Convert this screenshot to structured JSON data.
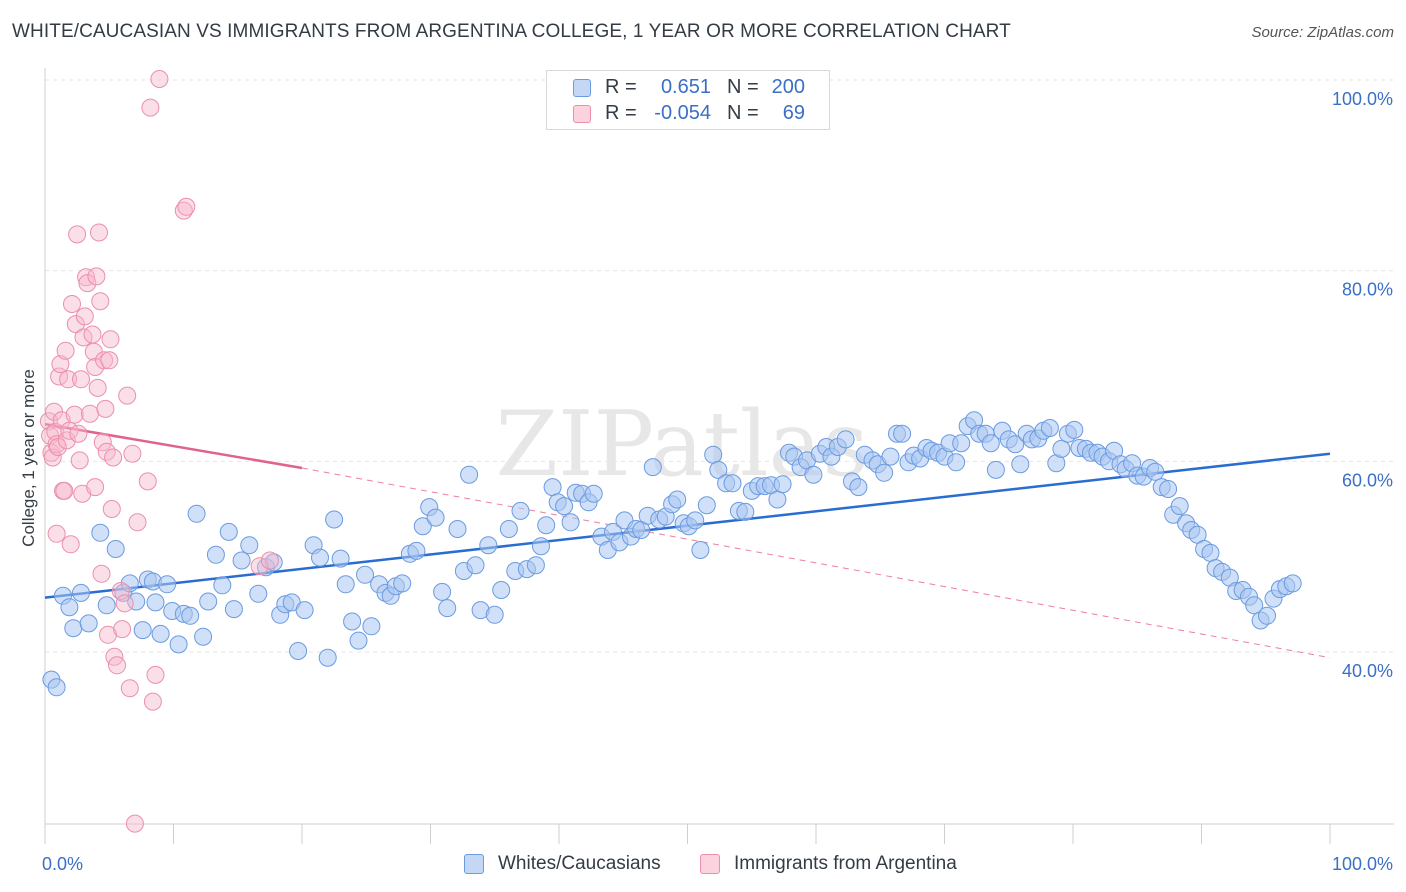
{
  "header": {
    "title": "WHITE/CAUCASIAN VS IMMIGRANTS FROM ARGENTINA COLLEGE, 1 YEAR OR MORE CORRELATION CHART",
    "source": "Source: ZipAtlas.com"
  },
  "watermark": "ZIPatlas",
  "legend_top": {
    "rows": [
      {
        "r_label": "R =",
        "r_value": "0.651",
        "n_label": "N =",
        "n_value": "200",
        "color": "#a9c6f2"
      },
      {
        "r_label": "R =",
        "r_value": "-0.054",
        "n_label": "N =",
        "n_value": "69",
        "color": "#f7b8cb"
      }
    ]
  },
  "legend_bottom": {
    "items": [
      {
        "label": "Whites/Caucasians",
        "color": "#a9c6f2"
      },
      {
        "label": "Immigrants from Argentina",
        "color": "#f7b8cb"
      }
    ]
  },
  "colors": {
    "blue_fill": "#a9c6f2",
    "blue_stroke": "#6b9be0",
    "blue_line": "#2a6dd0",
    "pink_fill": "#f7b8cb",
    "pink_stroke": "#ec8fab",
    "pink_line": "#e0638c",
    "grid": "#e6e6e6",
    "tick_text": "#3b6fc6"
  },
  "chart_data": {
    "type": "scatter",
    "title": "WHITE/CAUCASIAN VS IMMIGRANTS FROM ARGENTINA COLLEGE, 1 YEAR OR MORE CORRELATION CHART",
    "xlabel": "",
    "ylabel": "College, 1 year or more",
    "xlim": [
      0,
      100
    ],
    "ylim": [
      20,
      102
    ],
    "x_tick_labels": [
      "0.0%",
      "100.0%"
    ],
    "y_ticks": [
      40,
      60,
      80,
      100
    ],
    "y_tick_labels": [
      "40.0%",
      "60.0%",
      "80.0%",
      "100.0%"
    ],
    "grid": true,
    "legend_position": "top-center",
    "series": [
      {
        "name": "Whites/Caucasians",
        "color": "#a9c6f2",
        "trend": {
          "x": [
            0,
            100
          ],
          "y": [
            45.7,
            60.8
          ],
          "style": "solid"
        },
        "points": [
          [
            0.5,
            37.1
          ],
          [
            0.9,
            36.3
          ],
          [
            1.4,
            45.9
          ],
          [
            1.9,
            44.7
          ],
          [
            2.2,
            42.5
          ],
          [
            2.8,
            46.2
          ],
          [
            3.4,
            43.0
          ],
          [
            4.3,
            52.5
          ],
          [
            4.8,
            44.9
          ],
          [
            5.5,
            50.8
          ],
          [
            6.1,
            46.2
          ],
          [
            6.6,
            47.2
          ],
          [
            7.1,
            45.3
          ],
          [
            7.6,
            42.3
          ],
          [
            8.0,
            47.6
          ],
          [
            8.4,
            47.4
          ],
          [
            8.6,
            45.2
          ],
          [
            9.0,
            41.9
          ],
          [
            9.5,
            47.1
          ],
          [
            9.9,
            44.3
          ],
          [
            10.4,
            40.8
          ],
          [
            10.8,
            44.0
          ],
          [
            11.3,
            43.8
          ],
          [
            11.8,
            54.5
          ],
          [
            12.3,
            41.6
          ],
          [
            12.7,
            45.3
          ],
          [
            13.3,
            50.2
          ],
          [
            13.8,
            47.0
          ],
          [
            14.3,
            52.6
          ],
          [
            14.7,
            44.5
          ],
          [
            15.3,
            49.6
          ],
          [
            15.9,
            51.2
          ],
          [
            16.6,
            46.1
          ],
          [
            17.2,
            48.9
          ],
          [
            17.8,
            49.4
          ],
          [
            18.3,
            43.9
          ],
          [
            18.7,
            45.0
          ],
          [
            19.2,
            45.2
          ],
          [
            19.7,
            40.1
          ],
          [
            20.2,
            44.4
          ],
          [
            20.9,
            51.2
          ],
          [
            21.4,
            49.9
          ],
          [
            22.0,
            39.4
          ],
          [
            22.5,
            53.9
          ],
          [
            23.0,
            49.8
          ],
          [
            23.4,
            47.1
          ],
          [
            23.9,
            43.2
          ],
          [
            24.4,
            41.2
          ],
          [
            24.9,
            48.1
          ],
          [
            25.4,
            42.7
          ],
          [
            26.0,
            47.1
          ],
          [
            26.5,
            46.2
          ],
          [
            26.9,
            45.9
          ],
          [
            27.3,
            46.9
          ],
          [
            27.8,
            47.2
          ],
          [
            28.4,
            50.3
          ],
          [
            28.9,
            50.6
          ],
          [
            29.4,
            53.2
          ],
          [
            29.9,
            55.2
          ],
          [
            30.4,
            54.1
          ],
          [
            30.9,
            46.3
          ],
          [
            31.3,
            44.6
          ],
          [
            32.1,
            52.9
          ],
          [
            32.6,
            48.5
          ],
          [
            33.0,
            58.6
          ],
          [
            33.5,
            49.1
          ],
          [
            33.9,
            44.4
          ],
          [
            34.5,
            51.2
          ],
          [
            35.0,
            43.9
          ],
          [
            35.5,
            46.5
          ],
          [
            36.1,
            52.9
          ],
          [
            36.6,
            48.5
          ],
          [
            37.0,
            54.8
          ],
          [
            37.5,
            48.7
          ],
          [
            38.2,
            49.1
          ],
          [
            38.6,
            51.1
          ],
          [
            39.0,
            53.3
          ],
          [
            39.5,
            57.3
          ],
          [
            39.9,
            55.7
          ],
          [
            40.4,
            55.3
          ],
          [
            40.9,
            53.6
          ],
          [
            41.3,
            56.7
          ],
          [
            41.8,
            56.6
          ],
          [
            42.3,
            55.7
          ],
          [
            42.7,
            56.6
          ],
          [
            43.3,
            52.1
          ],
          [
            43.8,
            50.7
          ],
          [
            44.2,
            52.6
          ],
          [
            44.7,
            51.5
          ],
          [
            45.1,
            53.8
          ],
          [
            45.6,
            52.1
          ],
          [
            46.0,
            52.9
          ],
          [
            46.4,
            52.8
          ],
          [
            46.9,
            54.3
          ],
          [
            47.3,
            59.4
          ],
          [
            47.8,
            53.9
          ],
          [
            48.3,
            54.2
          ],
          [
            48.8,
            55.5
          ],
          [
            49.2,
            56.0
          ],
          [
            49.7,
            53.5
          ],
          [
            50.1,
            53.2
          ],
          [
            50.6,
            53.8
          ],
          [
            51.0,
            50.7
          ],
          [
            51.5,
            55.4
          ],
          [
            52.0,
            60.7
          ],
          [
            52.4,
            59.1
          ],
          [
            53.0,
            57.7
          ],
          [
            53.5,
            57.7
          ],
          [
            54.0,
            54.8
          ],
          [
            54.5,
            54.7
          ],
          [
            55.0,
            56.9
          ],
          [
            55.5,
            57.4
          ],
          [
            56.0,
            57.4
          ],
          [
            56.5,
            57.5
          ],
          [
            57.0,
            56.0
          ],
          [
            57.4,
            57.6
          ],
          [
            57.9,
            60.9
          ],
          [
            58.3,
            60.5
          ],
          [
            58.8,
            59.4
          ],
          [
            59.3,
            60.1
          ],
          [
            59.8,
            58.6
          ],
          [
            60.3,
            60.8
          ],
          [
            60.8,
            61.5
          ],
          [
            61.2,
            60.5
          ],
          [
            61.7,
            61.5
          ],
          [
            62.3,
            62.3
          ],
          [
            62.8,
            57.9
          ],
          [
            63.3,
            57.3
          ],
          [
            63.8,
            60.7
          ],
          [
            64.4,
            60.1
          ],
          [
            64.8,
            59.7
          ],
          [
            65.3,
            58.8
          ],
          [
            65.8,
            60.5
          ],
          [
            66.3,
            62.9
          ],
          [
            66.7,
            62.9
          ],
          [
            67.2,
            59.9
          ],
          [
            67.6,
            60.6
          ],
          [
            68.1,
            60.3
          ],
          [
            68.6,
            61.4
          ],
          [
            69.0,
            61.1
          ],
          [
            69.5,
            60.9
          ],
          [
            70.0,
            60.5
          ],
          [
            70.4,
            61.9
          ],
          [
            70.9,
            59.9
          ],
          [
            71.3,
            61.9
          ],
          [
            71.8,
            63.7
          ],
          [
            72.3,
            64.3
          ],
          [
            72.7,
            62.9
          ],
          [
            73.2,
            62.9
          ],
          [
            73.6,
            61.9
          ],
          [
            74.0,
            59.1
          ],
          [
            74.5,
            63.2
          ],
          [
            75.0,
            62.3
          ],
          [
            75.5,
            61.8
          ],
          [
            75.9,
            59.7
          ],
          [
            76.4,
            62.9
          ],
          [
            76.8,
            62.3
          ],
          [
            77.3,
            62.4
          ],
          [
            77.7,
            63.2
          ],
          [
            78.2,
            63.5
          ],
          [
            78.7,
            59.8
          ],
          [
            79.1,
            61.3
          ],
          [
            79.6,
            62.9
          ],
          [
            80.1,
            63.3
          ],
          [
            80.5,
            61.4
          ],
          [
            81.0,
            61.3
          ],
          [
            81.4,
            60.9
          ],
          [
            81.9,
            60.9
          ],
          [
            82.3,
            60.5
          ],
          [
            82.8,
            60.0
          ],
          [
            83.2,
            61.1
          ],
          [
            83.7,
            59.7
          ],
          [
            84.1,
            59.2
          ],
          [
            84.6,
            59.8
          ],
          [
            85.0,
            58.5
          ],
          [
            85.5,
            58.4
          ],
          [
            86.0,
            59.3
          ],
          [
            86.4,
            58.9
          ],
          [
            86.9,
            57.3
          ],
          [
            87.4,
            57.1
          ],
          [
            87.8,
            54.4
          ],
          [
            88.3,
            55.3
          ],
          [
            88.8,
            53.5
          ],
          [
            89.2,
            52.8
          ],
          [
            89.7,
            52.3
          ],
          [
            90.2,
            50.8
          ],
          [
            90.7,
            50.4
          ],
          [
            91.1,
            48.8
          ],
          [
            91.6,
            48.4
          ],
          [
            92.2,
            47.8
          ],
          [
            92.7,
            46.4
          ],
          [
            93.2,
            46.5
          ],
          [
            93.7,
            45.8
          ],
          [
            94.1,
            44.9
          ],
          [
            94.6,
            43.3
          ],
          [
            95.1,
            43.8
          ],
          [
            95.6,
            45.6
          ],
          [
            96.1,
            46.6
          ],
          [
            96.6,
            46.9
          ],
          [
            97.1,
            47.2
          ]
        ]
      },
      {
        "name": "Immigrants from Argentina",
        "color": "#f7b8cb",
        "trend": {
          "x": [
            0,
            20
          ],
          "y": [
            63.9,
            59.3
          ],
          "style": "solid",
          "extended": {
            "x": [
              20,
              100
            ],
            "y": [
              59.3,
              39.4
            ],
            "style": "dashed"
          }
        },
        "points": [
          [
            0.3,
            64.2
          ],
          [
            0.4,
            62.7
          ],
          [
            0.5,
            60.9
          ],
          [
            0.6,
            60.4
          ],
          [
            0.7,
            65.2
          ],
          [
            0.8,
            63.1
          ],
          [
            0.9,
            61.8
          ],
          [
            1.0,
            61.5
          ],
          [
            1.1,
            68.9
          ],
          [
            1.2,
            70.2
          ],
          [
            1.3,
            64.3
          ],
          [
            1.4,
            56.9
          ],
          [
            1.5,
            56.9
          ],
          [
            1.6,
            71.6
          ],
          [
            1.7,
            62.2
          ],
          [
            1.8,
            68.6
          ],
          [
            1.9,
            63.2
          ],
          [
            2.0,
            51.3
          ],
          [
            2.1,
            76.5
          ],
          [
            2.3,
            64.9
          ],
          [
            2.4,
            74.4
          ],
          [
            2.5,
            83.8
          ],
          [
            2.6,
            62.9
          ],
          [
            2.7,
            60.1
          ],
          [
            2.8,
            68.6
          ],
          [
            2.9,
            56.6
          ],
          [
            3.0,
            73.0
          ],
          [
            3.1,
            75.2
          ],
          [
            3.2,
            79.3
          ],
          [
            3.3,
            78.7
          ],
          [
            3.5,
            65.0
          ],
          [
            3.7,
            73.3
          ],
          [
            3.8,
            71.5
          ],
          [
            3.9,
            69.9
          ],
          [
            4.0,
            79.4
          ],
          [
            4.1,
            67.7
          ],
          [
            4.2,
            84.0
          ],
          [
            4.3,
            76.8
          ],
          [
            4.4,
            48.2
          ],
          [
            4.5,
            62.0
          ],
          [
            4.6,
            70.6
          ],
          [
            4.7,
            65.5
          ],
          [
            4.8,
            61.0
          ],
          [
            4.9,
            41.8
          ],
          [
            5.0,
            70.6
          ],
          [
            5.1,
            72.8
          ],
          [
            5.2,
            55.0
          ],
          [
            5.3,
            60.4
          ],
          [
            5.4,
            39.5
          ],
          [
            5.6,
            38.6
          ],
          [
            5.9,
            46.4
          ],
          [
            6.0,
            42.4
          ],
          [
            6.2,
            45.1
          ],
          [
            6.4,
            66.9
          ],
          [
            6.6,
            36.2
          ],
          [
            6.8,
            60.8
          ],
          [
            7.0,
            22.0
          ],
          [
            7.2,
            53.6
          ],
          [
            8.0,
            57.9
          ],
          [
            8.2,
            97.1
          ],
          [
            8.4,
            34.8
          ],
          [
            8.6,
            37.6
          ],
          [
            8.9,
            100.1
          ],
          [
            10.8,
            86.3
          ],
          [
            11.0,
            86.7
          ],
          [
            16.7,
            49.0
          ],
          [
            17.5,
            49.6
          ],
          [
            0.9,
            52.4
          ],
          [
            3.9,
            57.3
          ]
        ]
      }
    ]
  }
}
